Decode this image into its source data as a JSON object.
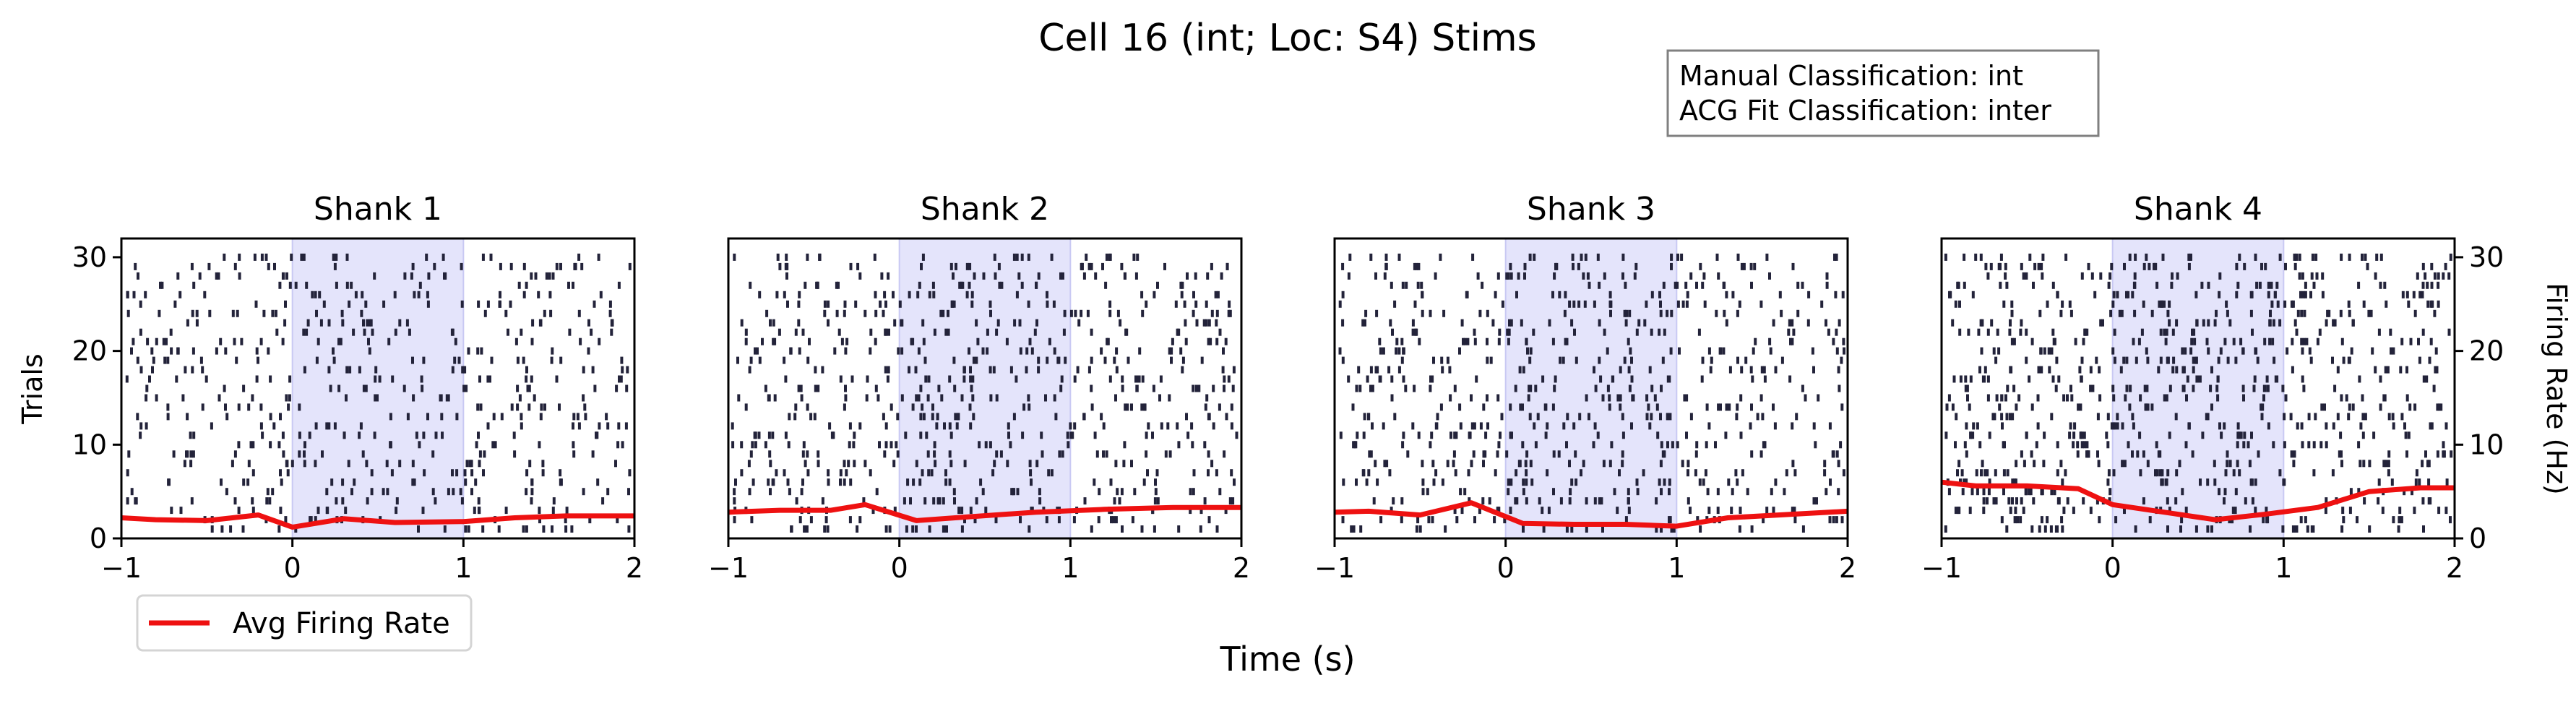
{
  "figure": {
    "title": "Cell 16 (int; Loc: S4) Stims",
    "xlabel": "Time (s)",
    "ylabel_left": "Trials",
    "ylabel_right": "Firing Rate (Hz)",
    "info_box": [
      "Manual Classification: int",
      "ACG Fit Classification: inter"
    ],
    "legend": {
      "label": "Avg Firing Rate",
      "color": "#ee1111",
      "placement": "lower-left, below first panel"
    },
    "colors": {
      "spikes": "#23233a",
      "stim_shade": "#e4e4fb",
      "stim_edge": "#c9c9f3",
      "rate": "#ee1111",
      "info_border": "#808080"
    }
  },
  "chart_data": [
    {
      "type": "raster",
      "title": "Shank 1",
      "xlim": [
        -1,
        2
      ],
      "ylim": [
        0,
        32
      ],
      "x_ticks": [
        -1,
        0,
        1,
        2
      ],
      "x_tick_labels": [
        "−1",
        "0",
        "1",
        "2"
      ],
      "y_ticks": [
        0,
        10,
        20,
        30
      ],
      "y_tick_labels": [
        "0",
        "10",
        "20",
        "30"
      ],
      "stim_window": [
        0,
        1
      ],
      "trials": 30,
      "spike_density": 0.42,
      "avg_rate": {
        "x": [
          -1,
          -0.8,
          -0.5,
          -0.2,
          0,
          0.3,
          0.6,
          1,
          1.3,
          1.6,
          2
        ],
        "y": [
          2.2,
          2.0,
          1.9,
          2.5,
          1.2,
          2.1,
          1.7,
          1.8,
          2.2,
          2.4,
          2.4
        ]
      },
      "rate_ylim": [
        0,
        32
      ]
    },
    {
      "type": "raster",
      "title": "Shank 2",
      "xlim": [
        -1,
        2
      ],
      "ylim": [
        0,
        32
      ],
      "x_ticks": [
        -1,
        0,
        1,
        2
      ],
      "x_tick_labels": [
        "−1",
        "0",
        "1",
        "2"
      ],
      "stim_window": [
        0,
        1
      ],
      "trials": 30,
      "spike_density": 0.58,
      "avg_rate": {
        "x": [
          -1,
          -0.7,
          -0.4,
          -0.2,
          0.1,
          0.4,
          0.8,
          1.2,
          1.6,
          2
        ],
        "y": [
          2.8,
          3.0,
          3.0,
          3.6,
          1.9,
          2.3,
          2.8,
          3.1,
          3.3,
          3.3
        ]
      },
      "rate_ylim": [
        0,
        32
      ]
    },
    {
      "type": "raster",
      "title": "Shank 3",
      "xlim": [
        -1,
        2
      ],
      "ylim": [
        0,
        32
      ],
      "x_ticks": [
        -1,
        0,
        1,
        2
      ],
      "x_tick_labels": [
        "−1",
        "0",
        "1",
        "2"
      ],
      "stim_window": [
        0,
        1
      ],
      "trials": 30,
      "spike_density": 0.55,
      "avg_rate": {
        "x": [
          -1,
          -0.8,
          -0.5,
          -0.2,
          0.1,
          0.4,
          0.7,
          1,
          1.3,
          1.7,
          2
        ],
        "y": [
          2.8,
          2.9,
          2.5,
          3.8,
          1.6,
          1.5,
          1.5,
          1.3,
          2.2,
          2.6,
          2.9
        ]
      },
      "rate_ylim": [
        0,
        32
      ]
    },
    {
      "type": "raster",
      "title": "Shank 4",
      "xlim": [
        -1,
        2
      ],
      "ylim": [
        0,
        32
      ],
      "x_ticks": [
        -1,
        0,
        1,
        2
      ],
      "x_tick_labels": [
        "−1",
        "0",
        "1",
        "2"
      ],
      "right_y_ticks": [
        0,
        10,
        20,
        30
      ],
      "right_y_tick_labels": [
        "0",
        "10",
        "20",
        "30"
      ],
      "stim_window": [
        0,
        1
      ],
      "trials": 30,
      "spike_density": 0.75,
      "avg_rate": {
        "x": [
          -1,
          -0.8,
          -0.5,
          -0.2,
          0,
          0.3,
          0.6,
          0.9,
          1.2,
          1.5,
          1.8,
          2
        ],
        "y": [
          6.0,
          5.6,
          5.6,
          5.3,
          3.6,
          2.8,
          2.0,
          2.6,
          3.3,
          5.0,
          5.4,
          5.4
        ]
      },
      "rate_ylim": [
        0,
        32
      ]
    }
  ]
}
